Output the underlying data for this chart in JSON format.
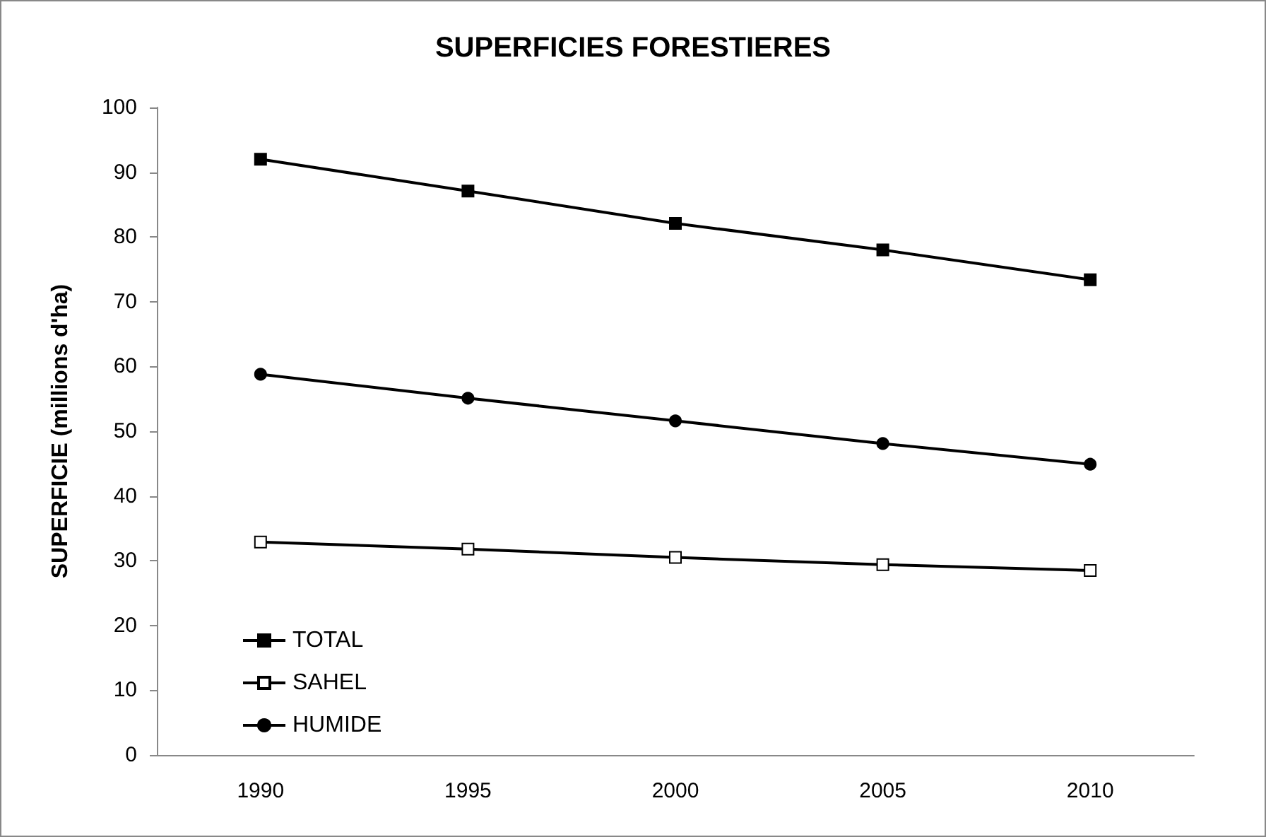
{
  "chart_data": {
    "type": "line",
    "title": "SUPERFICIES FORESTIERES",
    "ylabel": "SUPERFICIE (millions d'ha)",
    "categories": [
      "1990",
      "1995",
      "2000",
      "2005",
      "2010"
    ],
    "series": [
      {
        "name": "TOTAL",
        "color": "#000000",
        "marker": "square",
        "values": [
          92,
          87.1,
          82.1,
          78,
          73.4
        ]
      },
      {
        "name": "SAHEL",
        "color": "#000000",
        "marker": "square",
        "colors": [
          "#ffffff",
          "#ffffff",
          "#ffffff",
          "#ffffff",
          "#ffffff"
        ],
        "values": [
          32.9,
          31.8,
          30.5,
          29.4,
          28.5
        ]
      },
      {
        "name": "HUMIDE",
        "color": "#000000",
        "marker": "circle",
        "values": [
          58.8,
          55.1,
          51.6,
          48.1,
          44.9
        ]
      }
    ],
    "ylim": [
      0,
      100
    ],
    "yticks": [
      0,
      10,
      20,
      30,
      40,
      50,
      60,
      70,
      80,
      90,
      100
    ],
    "grid": false,
    "legend": "bottom left"
  }
}
